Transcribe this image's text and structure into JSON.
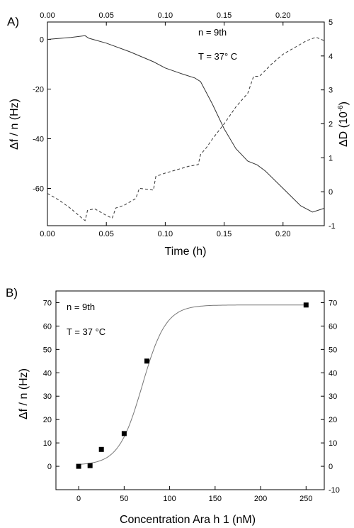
{
  "chart_data": [
    {
      "type": "line",
      "panel_label": "A)",
      "xlabel": "Time (h)",
      "ylabel_left": "Δf / n (Hz)",
      "ylabel_right_base": "ΔD (10",
      "ylabel_right_exp": "-6",
      "ylabel_right_close": ")",
      "xlim": [
        0,
        0.235
      ],
      "ylim_left": [
        -75,
        7
      ],
      "ylim_right": [
        -1,
        5
      ],
      "xticks": [
        "0.00",
        "0.05",
        "0.10",
        "0.15",
        "0.20"
      ],
      "yticks_left": [
        "-60",
        "-40",
        "-20",
        "0"
      ],
      "yticks_right": [
        "-1",
        "0",
        "1",
        "2",
        "3",
        "4",
        "5"
      ],
      "annotations": [
        "n = 9th",
        "T = 37° C"
      ],
      "series": [
        {
          "axis": "left",
          "style": "solid",
          "x": [
            0,
            0.02,
            0.032,
            0.035,
            0.05,
            0.07,
            0.09,
            0.1,
            0.115,
            0.125,
            0.13,
            0.14,
            0.15,
            0.16,
            0.17,
            0.178,
            0.185,
            0.2,
            0.215,
            0.225,
            0.235
          ],
          "y": [
            0,
            0.8,
            1.5,
            0.5,
            -1.5,
            -5,
            -9,
            -11.5,
            -14,
            -15.5,
            -17,
            -26,
            -36,
            -44,
            -49,
            -50.5,
            -53,
            -60,
            -67,
            -69.5,
            -68
          ]
        },
        {
          "axis": "right",
          "style": "dashed",
          "x": [
            0,
            0.01,
            0.02,
            0.03,
            0.032,
            0.034,
            0.04,
            0.05,
            0.055,
            0.058,
            0.065,
            0.075,
            0.078,
            0.09,
            0.092,
            0.1,
            0.11,
            0.12,
            0.128,
            0.13,
            0.135,
            0.14,
            0.15,
            0.16,
            0.17,
            0.175,
            0.18,
            0.19,
            0.2,
            0.21,
            0.22,
            0.228,
            0.235
          ],
          "y": [
            -0.05,
            -0.25,
            -0.5,
            -0.8,
            -0.85,
            -0.55,
            -0.5,
            -0.7,
            -0.78,
            -0.48,
            -0.4,
            -0.2,
            0.1,
            0.05,
            0.45,
            0.55,
            0.65,
            0.75,
            0.8,
            1.1,
            1.3,
            1.55,
            2.0,
            2.5,
            2.9,
            3.4,
            3.4,
            3.75,
            4.05,
            4.25,
            4.45,
            4.55,
            4.45
          ]
        }
      ]
    },
    {
      "type": "scatter",
      "panel_label": "B)",
      "xlabel": "Concentration Ara h 1 (nM)",
      "ylabel_left": "Δf / n (Hz)",
      "xlim": [
        -25,
        270
      ],
      "ylim_left": [
        -10,
        75
      ],
      "ylim_right": [
        -10,
        75
      ],
      "xticks": [
        "0",
        "50",
        "100",
        "150",
        "200",
        "250"
      ],
      "yticks_left": [
        "0",
        "10",
        "20",
        "30",
        "40",
        "50",
        "60",
        "70"
      ],
      "yticks_right": [
        "-10",
        "0",
        "10",
        "20",
        "30",
        "40",
        "50",
        "60",
        "70"
      ],
      "annotations": [
        "n = 9th",
        "T = 37 °C"
      ],
      "points": {
        "x": [
          0,
          12.5,
          25,
          50,
          75,
          250
        ],
        "y": [
          0,
          0.3,
          7.2,
          14,
          45,
          69
        ]
      },
      "fit": {
        "style": "solid",
        "model": "sigmoid",
        "bottom": 0.5,
        "top": 69,
        "x50": 70,
        "slope": 13
      }
    }
  ]
}
